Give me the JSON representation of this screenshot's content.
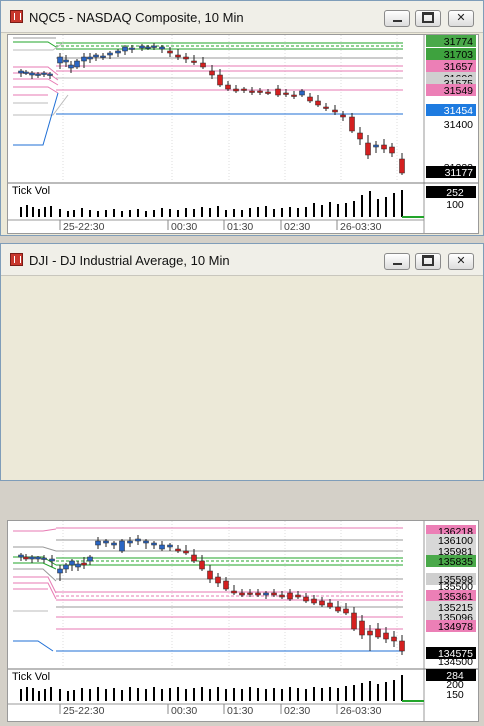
{
  "windows": [
    {
      "title": "NQC5 - NASDAQ Composite, 10 Min",
      "price_labels": [
        "31774",
        "31703",
        "31657",
        "31606",
        "31575",
        "31549",
        "31454",
        "31400",
        "31233",
        "31177"
      ],
      "volume_label": "Tick Vol",
      "volume_axis": [
        "252",
        "100"
      ],
      "time_labels": [
        "25-22:30",
        "00:30",
        "01:30",
        "02:30",
        "26-03:30"
      ]
    },
    {
      "title": "DJI - DJ Industrial Average, 10 Min",
      "price_labels": [
        "136218",
        "136100",
        "135981",
        "135835",
        "135598",
        "135500",
        "135361",
        "135215",
        "135096",
        "134978",
        "134575",
        "134500"
      ],
      "volume_label": "Tick Vol",
      "volume_axis": [
        "284",
        "200",
        "150"
      ],
      "time_labels": [
        "25-22:30",
        "00:30",
        "01:30",
        "02:30",
        "26-03:30"
      ]
    }
  ],
  "colors": {
    "up_candle": "#2a66c4",
    "down_candle": "#d42020",
    "green_line": "#22a52a",
    "pink_line": "#e77ab3",
    "blue_line": "#1f6fd6",
    "price_tag_black": "#000000",
    "price_tag_green": "#4aa94a",
    "price_tag_pink": "#ec7fb6",
    "price_tag_blue": "#1e7be0"
  },
  "icons": [
    "chart-window-icon",
    "minimize-icon",
    "maximize-icon",
    "close-icon"
  ]
}
